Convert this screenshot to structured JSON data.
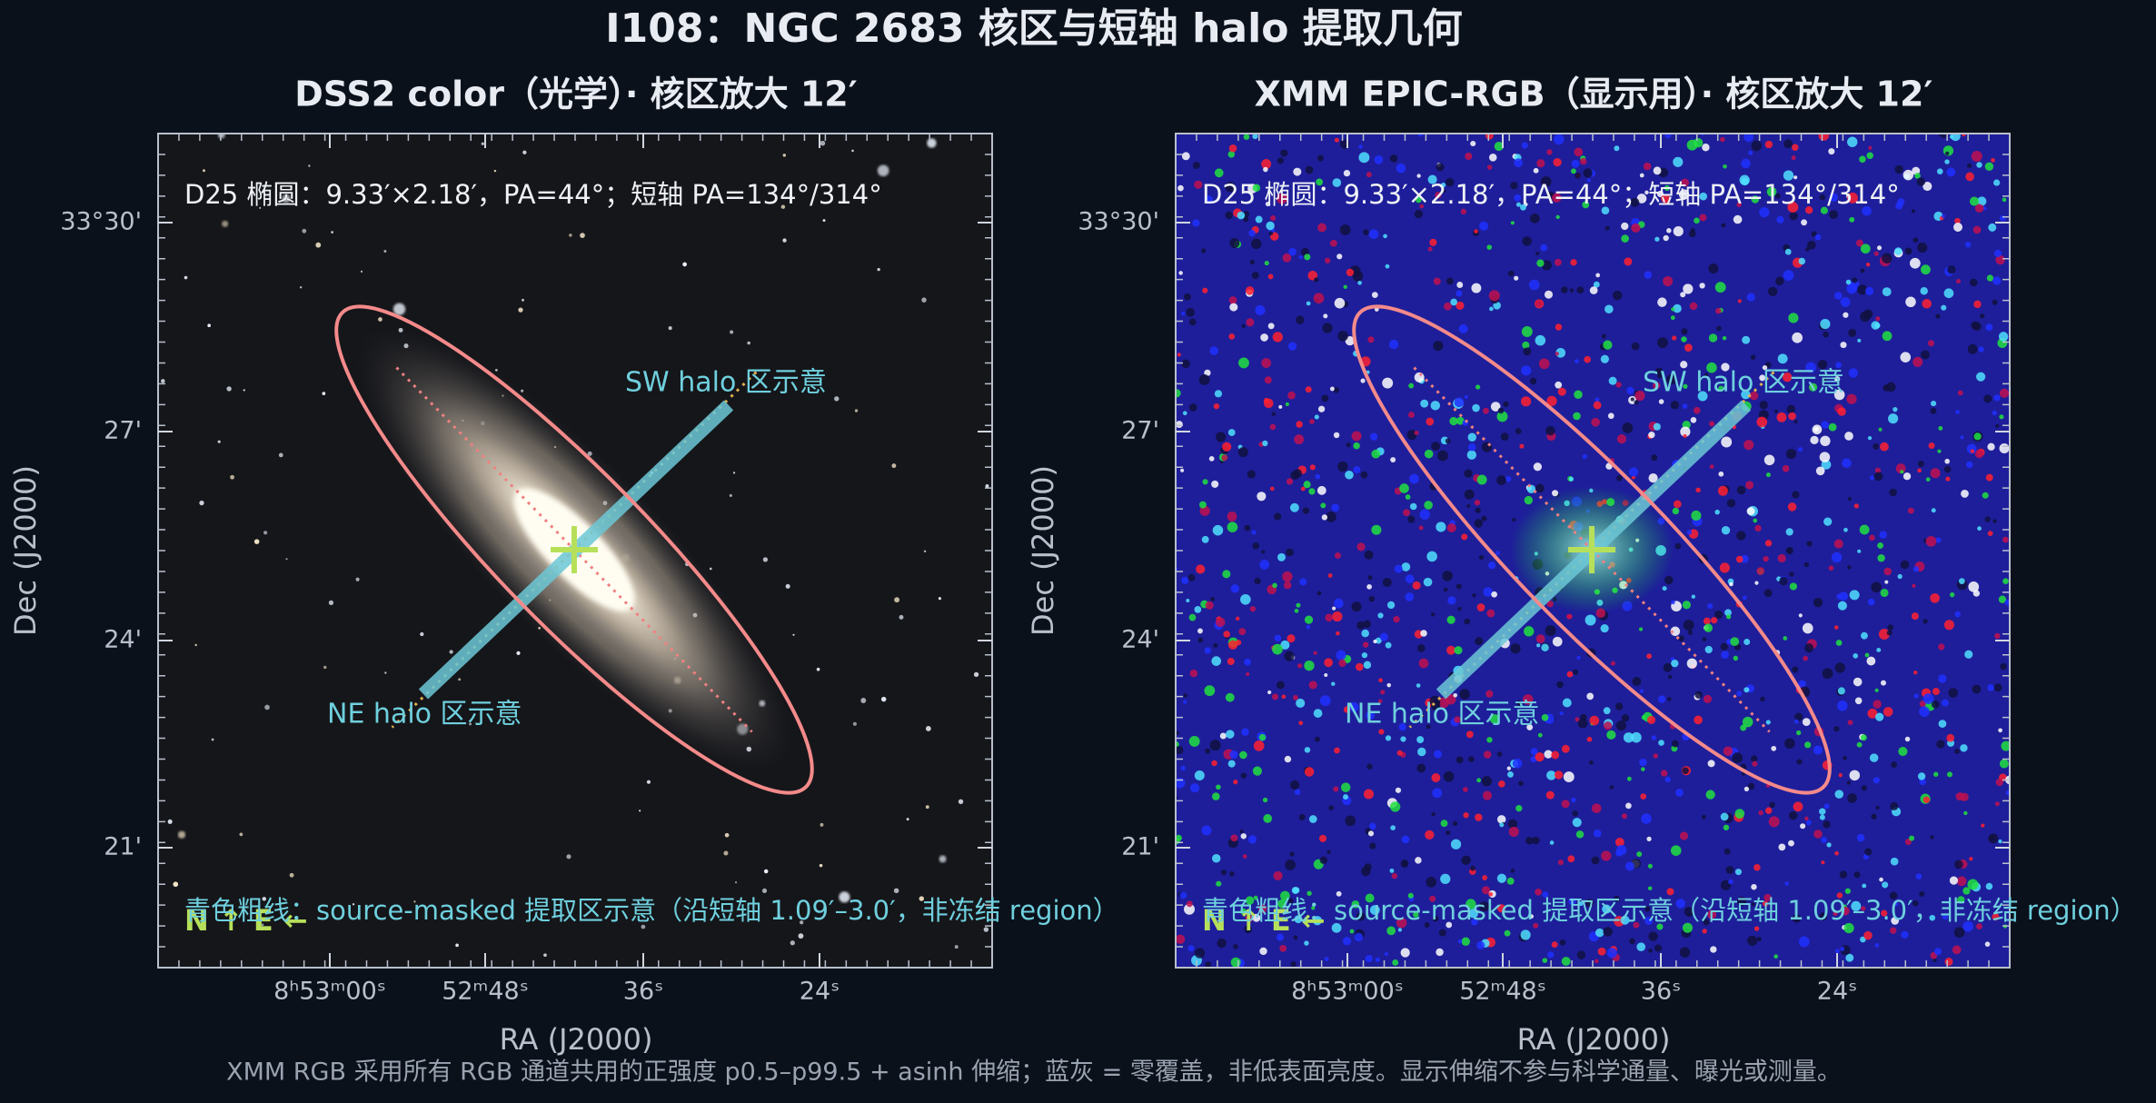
{
  "title": "I108：NGC 2683 核区与短轴 halo 提取几何",
  "panels": [
    {
      "title": "DSS2 color（光学）· 核区放大 12′",
      "annotation": "D25 椭圆：9.33′×2.18′，PA=44°；短轴 PA=134°/314°",
      "sw_label": "SW halo 区示意",
      "ne_label": "NE halo 区示意",
      "region_note": "青色粗线：source-masked 提取区示意（沿短轴 1.09′–3.0′，非冻结 region）",
      "compass": "N ↑ E ←",
      "xticks": [
        "8ʰ53ᵐ00ˢ",
        "52ᵐ48ˢ",
        "36ˢ",
        "24ˢ"
      ],
      "yticks": [
        "33°30'",
        "27'",
        "24'",
        "21'"
      ],
      "xlabel": "RA (J2000)",
      "ylabel": "Dec (J2000)"
    },
    {
      "title": "XMM EPIC-RGB（显示用）· 核区放大 12′",
      "annotation": "D25 椭圆：9.33′×2.18′，PA=44°；短轴 PA=134°/314°",
      "sw_label": "SW halo 区示意",
      "ne_label": "NE halo 区示意",
      "region_note": "青色粗线：source-masked 提取区示意（沿短轴 1.09′–3.0′，非冻结 region）",
      "compass": "N ↑ E ←",
      "xticks": [
        "8ʰ53ᵐ00ˢ",
        "52ᵐ48ˢ",
        "36ˢ",
        "24ˢ"
      ],
      "yticks": [
        "33°30'",
        "27'",
        "24'",
        "21'"
      ],
      "xlabel": "RA (J2000)",
      "ylabel": "Dec (J2000)"
    }
  ],
  "footnote": "XMM RGB 采用所有 RGB 通道共用的正强度 p0.5–p99.5 + asinh 伸缩；蓝灰 = 零覆盖，非低表面亮度。显示伸缩不参与科学通量、曝光或测量。"
}
